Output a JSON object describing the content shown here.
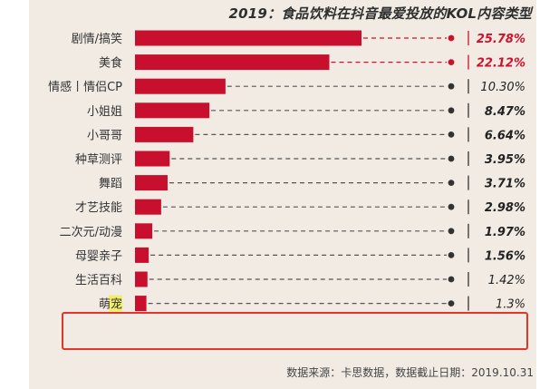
{
  "title": "2019：食品饮料在抖音最爱投放的KOL内容类型",
  "footer": "数据来源：卡思数据，数据截止日期：2019.10.31",
  "colors": {
    "bar": "#c8102e",
    "top_value": "#d0102a",
    "value": "#222222",
    "dash_top": "#d0102a",
    "dash": "#555555",
    "highlight": "#e4342a",
    "mark_bg": "#f2ee6a"
  },
  "chart_data": {
    "type": "bar",
    "orientation": "horizontal",
    "title": "2019：食品饮料在抖音最爱投放的KOL内容类型",
    "unit": "%",
    "categories": [
      "剧情/搞笑",
      "美食",
      "情感丨情侣CP",
      "小姐姐",
      "小哥哥",
      "种草测评",
      "舞蹈",
      "才艺技能",
      "二次元/动漫",
      "母婴亲子",
      "生活百科",
      "萌宠"
    ],
    "values": [
      25.78,
      22.12,
      10.3,
      8.47,
      6.64,
      3.95,
      3.71,
      2.98,
      1.97,
      1.56,
      1.42,
      1.3
    ],
    "value_labels": [
      "25.78%",
      "22.12%",
      "10.30%",
      "8.47%",
      "6.64%",
      "3.95%",
      "3.71%",
      "2.98%",
      "1.97%",
      "1.56%",
      "1.42%",
      "1.3%"
    ],
    "highlighted_category": "萌宠",
    "xlim": [
      0,
      25.78
    ]
  }
}
